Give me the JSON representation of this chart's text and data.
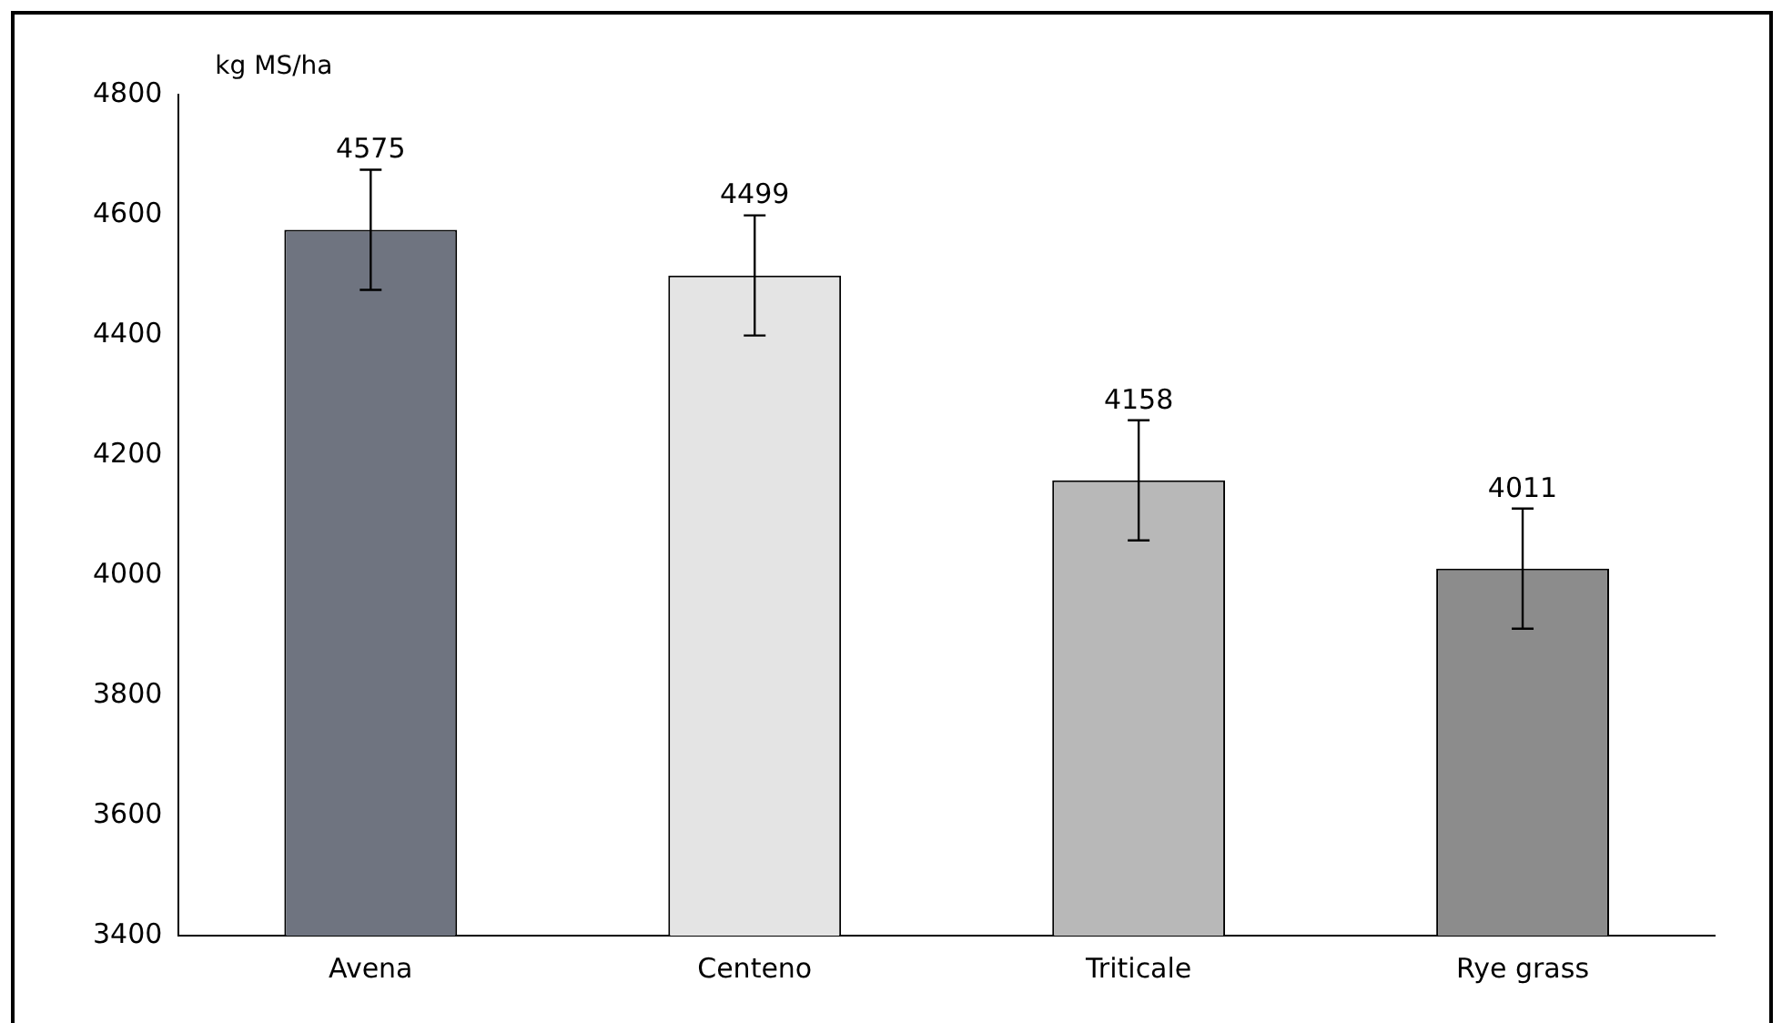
{
  "chart_data": {
    "type": "bar",
    "ylabel": "kg MS/ha",
    "categories": [
      "Avena",
      "Centeno",
      "Triticale",
      "Rye grass"
    ],
    "values": [
      4575,
      4499,
      4158,
      4011
    ],
    "colors": [
      "#6f7480",
      "#e4e4e4",
      "#b8b8b8",
      "#8c8c8c"
    ],
    "errors": [
      100,
      100,
      100,
      100
    ],
    "ylim": [
      3400,
      4800
    ],
    "yticks": [
      3400,
      3600,
      3800,
      4000,
      4200,
      4400,
      4600,
      4800
    ],
    "data_labels": true
  }
}
